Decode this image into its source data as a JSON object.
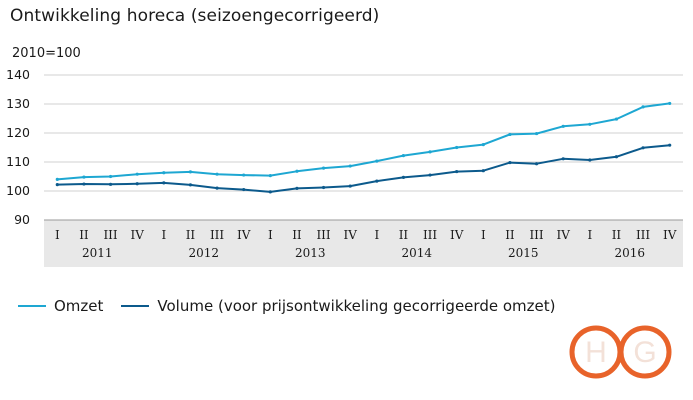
{
  "chart_data": {
    "type": "line",
    "title": "Ontwikkeling horeca (seizoengecorrigeerd)",
    "ylabel": "2010=100",
    "ylim": [
      90,
      140
    ],
    "yticks": [
      90,
      100,
      110,
      120,
      130,
      140
    ],
    "grid": true,
    "legend_position": "bottom-left",
    "quarters": [
      "I",
      "II",
      "III",
      "IV",
      "I",
      "II",
      "III",
      "IV",
      "I",
      "II",
      "III",
      "IV",
      "I",
      "II",
      "III",
      "IV",
      "I",
      "II",
      "III",
      "IV",
      "I",
      "II",
      "III",
      "IV"
    ],
    "years": [
      "2011",
      "2012",
      "2013",
      "2014",
      "2015",
      "2016"
    ],
    "x": [
      "2011-I",
      "2011-II",
      "2011-III",
      "2011-IV",
      "2012-I",
      "2012-II",
      "2012-III",
      "2012-IV",
      "2013-I",
      "2013-II",
      "2013-III",
      "2013-IV",
      "2014-I",
      "2014-II",
      "2014-III",
      "2014-IV",
      "2015-I",
      "2015-II",
      "2015-III",
      "2015-IV",
      "2016-I",
      "2016-II",
      "2016-III",
      "2016-IV"
    ],
    "series": [
      {
        "name": "Omzet",
        "color": "#1ea7d2",
        "values": [
          104.0,
          104.8,
          105.0,
          105.8,
          106.3,
          106.6,
          105.8,
          105.5,
          105.3,
          106.8,
          107.9,
          108.6,
          110.3,
          112.2,
          113.5,
          115.0,
          116.0,
          119.5,
          119.8,
          122.3,
          123.0,
          124.8,
          129.0,
          130.2
        ]
      },
      {
        "name": "Volume (voor prijsontwikkeling gecorrigeerde omzet)",
        "color": "#0c5a8c",
        "values": [
          102.2,
          102.4,
          102.3,
          102.5,
          102.8,
          102.1,
          101.0,
          100.5,
          99.7,
          100.9,
          101.2,
          101.7,
          103.4,
          104.7,
          105.5,
          106.7,
          107.0,
          109.8,
          109.4,
          111.1,
          110.7,
          111.8,
          114.9,
          115.8
        ]
      }
    ]
  },
  "brand": {
    "logo_letters": "HG",
    "logo_color": "#e8632a"
  }
}
